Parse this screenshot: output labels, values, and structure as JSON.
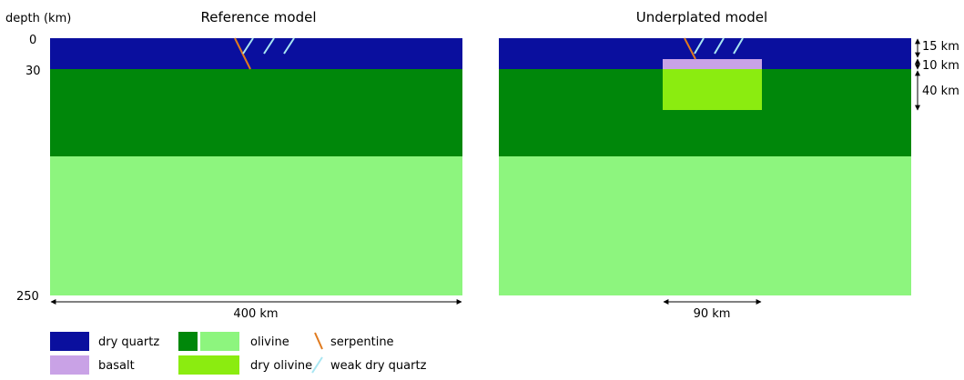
{
  "titles": {
    "reference": "Reference model",
    "underplated": "Underplated model"
  },
  "depth_axis": {
    "label": "depth (km)",
    "ticks": [
      "0",
      "30",
      "250"
    ]
  },
  "dimensions": {
    "width": "400 km",
    "block_width": "90 km",
    "thickness_1": "15 km",
    "thickness_2": "10 km",
    "thickness_3": "40 km"
  },
  "legend": {
    "dry_quartz": "dry quartz",
    "olivine": "olivine",
    "serpentine": "serpentine",
    "basalt": "basalt",
    "dry_olivine": "dry olivine",
    "weak_dry_quartz": "weak dry quartz"
  },
  "colors": {
    "dry_quartz": "#0a0f9e",
    "olivine_dark": "#00870a",
    "olivine_light": "#8df57e",
    "basalt": "#c9a2e6",
    "dry_olivine": "#8bec10",
    "serpentine": "#e07a1e",
    "weak_dry_quartz": "#a8e6f2"
  }
}
